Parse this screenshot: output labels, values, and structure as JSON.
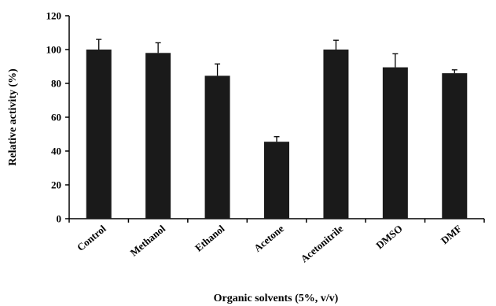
{
  "chart_data": {
    "type": "bar",
    "title": "",
    "xlabel": "Organic solvents (5%, v/v)",
    "ylabel": "Relative activity (%)",
    "categories": [
      "Control",
      "Methanol",
      "Ethanol",
      "Acetone",
      "Acetonitrile",
      "DMSO",
      "DMF"
    ],
    "values": [
      100,
      98,
      84.5,
      45.5,
      100,
      89.5,
      86
    ],
    "errors": [
      6,
      6,
      7,
      3,
      5.5,
      8,
      2
    ],
    "ylim": [
      0,
      120
    ],
    "yticks": [
      0,
      20,
      40,
      60,
      80,
      100,
      120
    ],
    "grid": false,
    "bar_color": "#1a1a1a"
  }
}
